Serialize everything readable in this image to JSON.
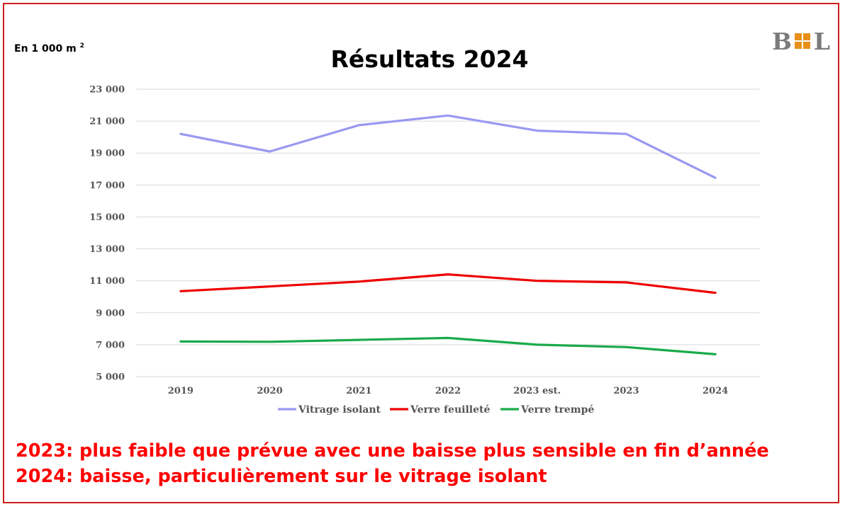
{
  "unit_label": "En 1 000 m",
  "unit_sup": "2",
  "logo": {
    "left": "B",
    "right": "L",
    "accent_color": "#e8901a"
  },
  "notes": [
    "2023: plus faible que prévue avec une baisse plus sensible en fin d’année",
    "2024: baisse, particulièrement sur le vitrage isolant"
  ],
  "chart_data": {
    "type": "line",
    "title": "Résultats 2024",
    "xlabel": "",
    "ylabel": "",
    "categories": [
      "2019",
      "2020",
      "2021",
      "2022",
      "2023 est.",
      "2023",
      "2024"
    ],
    "ylim": [
      5000,
      23000
    ],
    "yticks": [
      5000,
      7000,
      9000,
      11000,
      13000,
      15000,
      17000,
      19000,
      21000,
      23000
    ],
    "ytick_labels": [
      "5 000",
      "7 000",
      "9 000",
      "11 000",
      "13 000",
      "15 000",
      "17 000",
      "19 000",
      "21 000",
      "23 000"
    ],
    "grid": true,
    "legend_position": "bottom",
    "series": [
      {
        "name": "Vitrage isolant",
        "color": "#9999f2",
        "values": [
          20200,
          19100,
          20750,
          21350,
          20400,
          20200,
          17450
        ]
      },
      {
        "name": "Verre feuilleté",
        "color": "#ee0000",
        "values": [
          10350,
          10650,
          10950,
          11400,
          11000,
          10900,
          10250
        ]
      },
      {
        "name": "Verre trempé",
        "color": "#1aaa4a",
        "values": [
          7200,
          7180,
          7300,
          7420,
          7000,
          6850,
          6400
        ]
      }
    ]
  }
}
